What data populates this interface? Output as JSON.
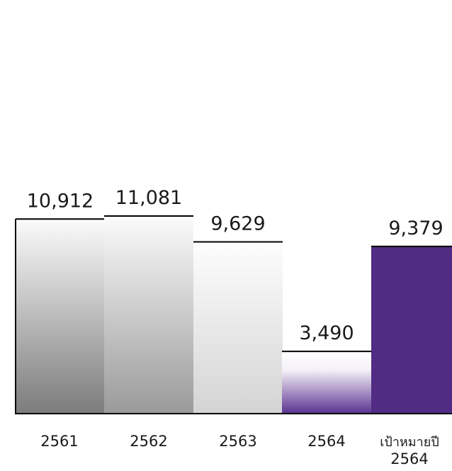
{
  "chart_data": {
    "type": "bar",
    "categories": [
      "2561",
      "2562",
      "2563",
      "2564",
      "เป้าหมายปี 2564"
    ],
    "category_lines": [
      [
        "2561"
      ],
      [
        "2562"
      ],
      [
        "2563"
      ],
      [
        "2564"
      ],
      [
        "เป้าหมายปี",
        "2564"
      ]
    ],
    "values": [
      10912,
      11081,
      9629,
      3490,
      9379
    ],
    "value_labels": [
      "10,912",
      "11,081",
      "9,629",
      "3,490",
      "9,379"
    ],
    "title": "",
    "xlabel": "",
    "ylabel": "",
    "ylim": [
      0,
      11081
    ],
    "grid": false,
    "legend": "none",
    "colors": {
      "bar_light": "#fafafa",
      "bar_dark": "#7f7f7f",
      "bar_2563_top": "#fdfdfd",
      "bar_2563_bottom": "#d6d6d6",
      "bar_2564_bottom": "#5b3190",
      "target_bar": "#512b84",
      "axis": "#000000"
    }
  }
}
